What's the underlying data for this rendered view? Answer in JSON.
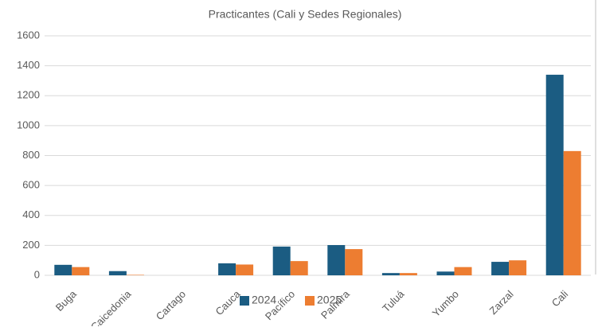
{
  "chart_data": {
    "type": "bar",
    "title": "Practicantes (Cali y Sedes Regionales)",
    "categories": [
      "Buga",
      "Caicedonia",
      "Cartago",
      "Cauca",
      "Pacífico",
      "Palmira",
      "Tuluá",
      "Yumbo",
      "Zarzal",
      "Cali"
    ],
    "series": [
      {
        "name": "2024",
        "color": "#1b5c82",
        "values": [
          70,
          28,
          0,
          80,
          192,
          202,
          15,
          25,
          90,
          1340
        ]
      },
      {
        "name": "2025",
        "color": "#ed7d31",
        "values": [
          55,
          3,
          0,
          72,
          95,
          175,
          15,
          55,
          100,
          830
        ]
      }
    ],
    "ylim": [
      0,
      1600
    ],
    "yticks": [
      0,
      200,
      400,
      600,
      800,
      1000,
      1200,
      1400,
      1600
    ],
    "grid": true,
    "legend": "bottom"
  }
}
